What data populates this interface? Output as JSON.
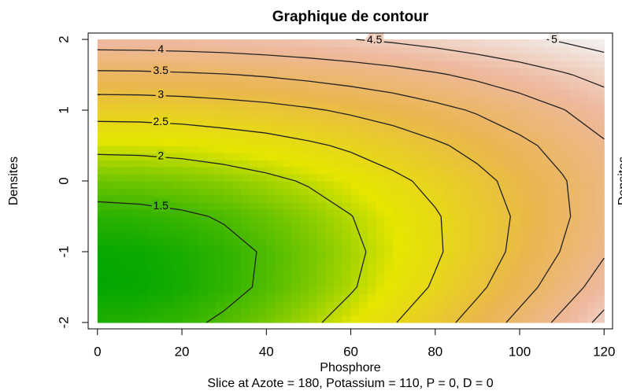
{
  "chart_data": {
    "type": "contour",
    "title": "Graphique de contour",
    "xlabel": "Phosphore",
    "ylabel": "Densites",
    "subtitle": "Slice at Azote = 180, Potassium = 110, P = 0, D = 0",
    "x": [
      0,
      10,
      20,
      30,
      40,
      50,
      60,
      70,
      80,
      90,
      100,
      110,
      120
    ],
    "y": [
      -2,
      -1.5,
      -1,
      -0.5,
      0,
      0.5,
      1,
      1.5,
      2
    ],
    "z": [
      [
        1.34,
        1.36,
        1.43,
        1.55,
        1.71,
        1.92,
        2.17,
        2.47,
        2.81,
        3.2,
        3.64,
        4.12,
        4.65
      ],
      [
        1.21,
        1.23,
        1.29,
        1.4,
        1.55,
        1.73,
        1.96,
        2.24,
        2.55,
        2.91,
        3.31,
        3.75,
        4.23
      ],
      [
        1.23,
        1.25,
        1.31,
        1.4,
        1.53,
        1.7,
        1.91,
        2.16,
        2.44,
        2.76,
        3.12,
        3.52,
        3.95
      ],
      [
        1.38,
        1.4,
        1.45,
        1.53,
        1.65,
        1.8,
        1.99,
        2.21,
        2.46,
        2.75,
        3.07,
        3.42,
        3.81
      ],
      [
        1.67,
        1.69,
        1.73,
        1.8,
        1.91,
        2.04,
        2.2,
        2.4,
        2.62,
        2.87,
        3.15,
        3.46,
        3.8
      ],
      [
        2.11,
        2.12,
        2.16,
        2.23,
        2.31,
        2.43,
        2.57,
        2.74,
        2.93,
        3.14,
        3.39,
        3.65,
        3.95
      ],
      [
        2.68,
        2.69,
        2.72,
        2.78,
        2.85,
        2.95,
        3.07,
        3.2,
        3.37,
        3.55,
        3.75,
        3.98,
        4.22
      ],
      [
        3.4,
        3.41,
        3.44,
        3.48,
        3.54,
        3.62,
        3.71,
        3.82,
        3.95,
        4.1,
        4.27,
        4.45,
        4.65
      ],
      [
        4.25,
        4.26,
        4.28,
        4.31,
        4.36,
        4.42,
        4.49,
        4.57,
        4.67,
        4.79,
        4.91,
        5.05,
        5.2
      ]
    ],
    "levels": [
      1.5,
      2,
      2.5,
      3,
      3.5,
      4,
      4.5,
      5
    ],
    "zlim": [
      1.2,
      5.2
    ],
    "colors": [
      "#00a600",
      "#e6e600",
      "#eab64e",
      "#eeb99f",
      "#f2f2f2"
    ],
    "xlim": [
      -2.2,
      122
    ],
    "ylim": [
      -2.09,
      2.09
    ],
    "xticks": [
      0,
      20,
      40,
      60,
      80,
      100,
      120
    ],
    "yticks": [
      -2,
      -1,
      0,
      1,
      2
    ]
  }
}
